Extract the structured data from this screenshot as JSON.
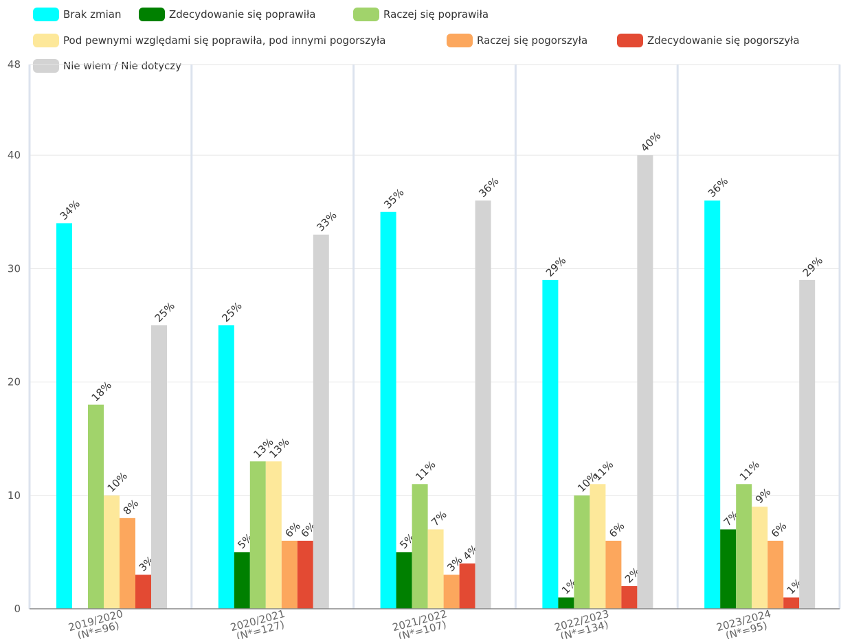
{
  "chart_data": {
    "type": "bar",
    "categories": [
      [
        "2019/2020",
        "(N*=96)"
      ],
      [
        "2020/2021",
        "(N*=127)"
      ],
      [
        "2021/2022",
        "(N*=107)"
      ],
      [
        "2022/2023",
        "(N*=134)"
      ],
      [
        "2023/2024",
        "(N*=95)"
      ]
    ],
    "series": [
      {
        "name": "Brak zmian",
        "color": "#00FFFF",
        "values": [
          34,
          25,
          35,
          29,
          36
        ]
      },
      {
        "name": "Zdecydowanie się poprawiła",
        "color": "#008000",
        "values": [
          0,
          5,
          5,
          1,
          7
        ]
      },
      {
        "name": "Raczej się poprawiła",
        "color": "#A1D36B",
        "values": [
          18,
          13,
          11,
          10,
          11
        ]
      },
      {
        "name": "Pod pewnymi względami się poprawiła, pod innymi pogorszyła",
        "color": "#FDE89A",
        "values": [
          10,
          13,
          7,
          11,
          9
        ]
      },
      {
        "name": "Raczej się pogorszyła",
        "color": "#FCA75D",
        "values": [
          8,
          6,
          3,
          6,
          6
        ]
      },
      {
        "name": "Zdecydowanie się pogorszyła",
        "color": "#E34A33",
        "values": [
          3,
          6,
          4,
          2,
          1
        ]
      },
      {
        "name": "Nie wiem / Nie dotyczy",
        "color": "#D3D3D3",
        "values": [
          25,
          33,
          36,
          40,
          29
        ]
      }
    ],
    "value_suffix": "%",
    "ylim": [
      0,
      48
    ],
    "yticks": [
      0,
      10,
      20,
      30,
      40,
      48
    ],
    "grid": true,
    "legend_position": "top-left",
    "title": "",
    "xlabel": "",
    "ylabel": ""
  }
}
